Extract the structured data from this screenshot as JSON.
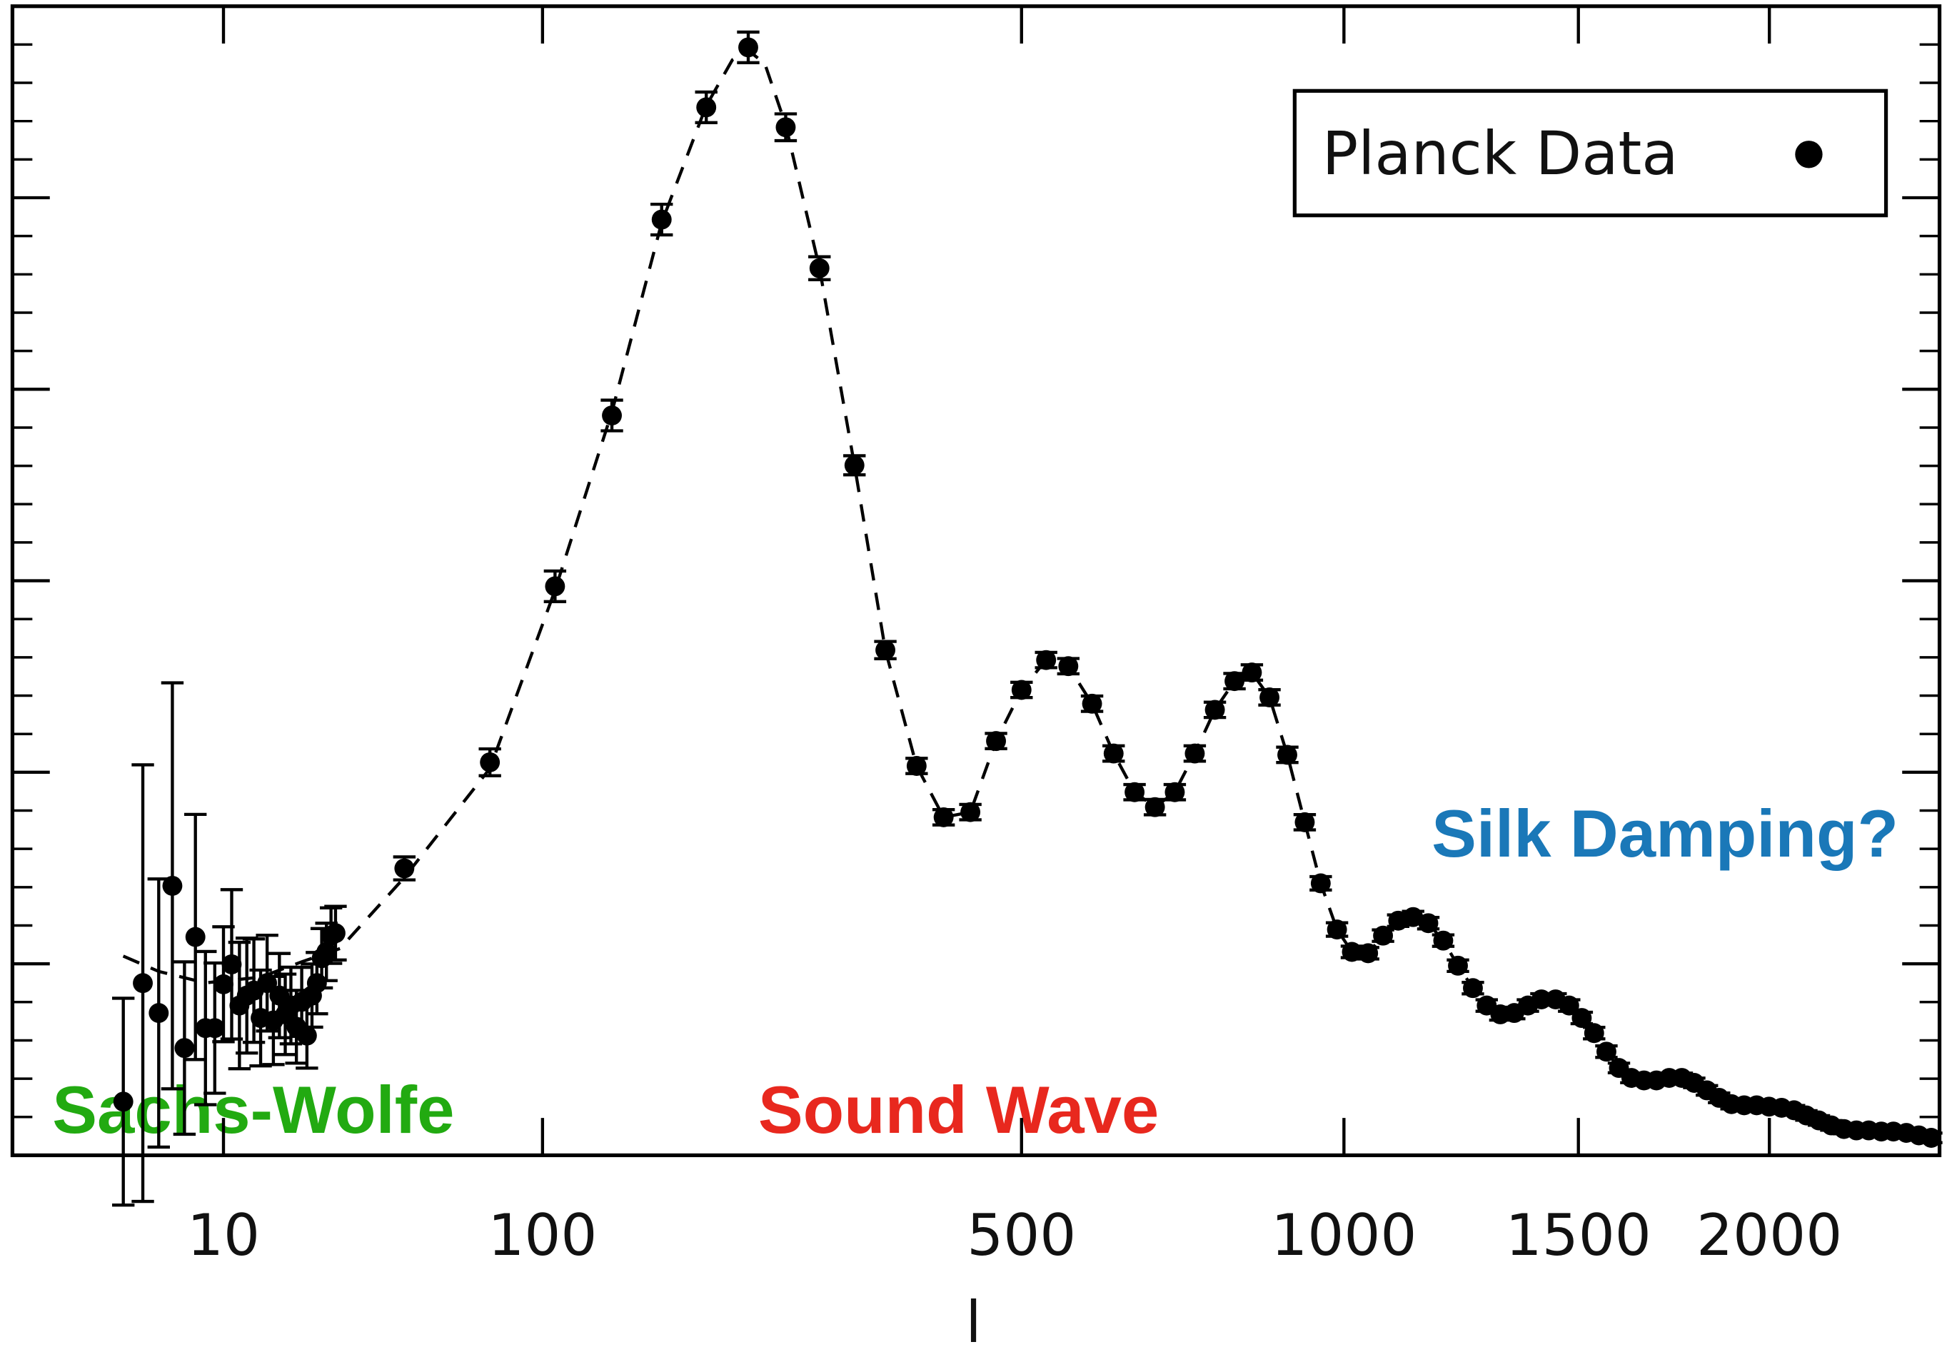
{
  "chart_data": {
    "type": "scatter",
    "xlabel": "l",
    "xscale": "power",
    "xpower": 0.4,
    "xlim": [
      0,
      2520
    ],
    "xticks": [
      10,
      100,
      500,
      1000,
      1500,
      2000
    ],
    "ylim": [
      0,
      6000
    ],
    "yticks": [
      0,
      1000,
      2000,
      3000,
      4000,
      5000,
      6000
    ],
    "yminorticks": [
      200,
      400,
      600,
      800,
      1200,
      1400,
      1600,
      1800,
      2200,
      2400,
      2600,
      2800,
      3200,
      3400,
      3600,
      3800,
      4200,
      4400,
      4600,
      4800,
      5200,
      5400,
      5600,
      5800
    ],
    "legend": "upper right",
    "series": [
      {
        "name": "Planck Data",
        "color": "#000000",
        "x": [
          2,
          3,
          4,
          5,
          6,
          7,
          8,
          9,
          10,
          11,
          12,
          13,
          14,
          15,
          16,
          17,
          18,
          19,
          20,
          21,
          22,
          23,
          24,
          25,
          26,
          27,
          28,
          29,
          47,
          77,
          106,
          136,
          166,
          196,
          227,
          257,
          286,
          318,
          348,
          380,
          409,
          439,
          469,
          500,
          531,
          560,
          592,
          622,
          652,
          682,
          712,
          743,
          775,
          807,
          836,
          866,
          897,
          928,
          957,
          987,
          1015,
          1046,
          1075,
          1105,
          1135,
          1166,
          1197,
          1228,
          1260,
          1290,
          1320,
          1351,
          1382,
          1413,
          1446,
          1478,
          1508,
          1538,
          1568,
          1599,
          1630,
          1662,
          1694,
          1727,
          1760,
          1793,
          1827,
          1860,
          1894,
          1929,
          1964,
          1999,
          2035,
          2071,
          2107,
          2144,
          2181,
          2219,
          2257,
          2295,
          2334,
          2372,
          2413,
          2453,
          2493
        ],
        "values": [
          280,
          899,
          743,
          1407,
          560,
          1140,
          664,
          664,
          893,
          997,
          782,
          834,
          860,
          717,
          899,
          704,
          834,
          736,
          782,
          671,
          801,
          625,
          834,
          899,
          1029,
          1062,
          1147,
          1160,
          1498,
          2052,
          2971,
          3863,
          4886,
          5472,
          5785,
          5368,
          4632,
          3603,
          2638,
          2033,
          1765,
          1792,
          2163,
          2430,
          2586,
          2554,
          2358,
          2098,
          1896,
          1818,
          1896,
          2098,
          2326,
          2476,
          2521,
          2391,
          2091,
          1739,
          1420,
          1179,
          1062,
          1055,
          1147,
          1225,
          1244,
          1212,
          1121,
          990,
          873,
          782,
          736,
          743,
          782,
          814,
          814,
          782,
          717,
          638,
          541,
          456,
          404,
          391,
          391,
          404,
          404,
          378,
          339,
          300,
          267,
          261,
          261,
          254,
          248,
          235,
          208,
          182,
          156,
          137,
          130,
          130,
          124,
          124,
          117,
          104,
          91
        ],
        "errors": [
          540,
          1140,
          700,
          1060,
          450,
          640,
          400,
          340,
          300,
          390,
          330,
          300,
          270,
          250,
          250,
          230,
          220,
          210,
          200,
          190,
          180,
          170,
          165,
          160,
          155,
          150,
          145,
          140,
          60,
          70,
          80,
          80,
          80,
          80,
          80,
          70,
          60,
          50,
          45,
          40,
          40,
          40,
          40,
          40,
          40,
          40,
          40,
          40,
          40,
          40,
          40,
          40,
          40,
          40,
          40,
          40,
          40,
          40,
          35,
          35,
          30,
          30,
          30,
          30,
          30,
          30,
          30,
          30,
          30,
          30,
          30,
          30,
          30,
          30,
          30,
          30,
          30,
          30,
          30,
          25,
          25,
          25,
          25,
          25,
          25,
          25,
          25,
          25,
          25,
          25,
          25,
          25,
          25,
          25,
          25,
          25,
          25,
          25,
          25,
          25,
          25,
          25,
          25,
          25,
          25
        ]
      }
    ],
    "model": {
      "color": "#000000",
      "dash": true,
      "x": [
        2,
        4,
        8,
        15,
        22,
        30,
        47,
        77,
        106,
        136,
        166,
        196,
        215,
        227,
        240,
        257,
        286,
        318,
        348,
        380,
        409,
        439,
        469,
        500,
        531,
        560,
        592,
        622,
        652,
        682,
        712,
        743,
        775,
        807,
        836,
        866,
        897,
        928,
        957,
        987,
        1015,
        1046,
        1075,
        1105,
        1135,
        1166,
        1197,
        1228,
        1260,
        1290,
        1320,
        1351,
        1382,
        1413,
        1446,
        1478,
        1508,
        1538,
        1568,
        1599,
        1630,
        1662,
        1694,
        1727,
        1760,
        1793,
        1827,
        1860,
        1894,
        1929,
        1964,
        1999,
        2035,
        2071,
        2107,
        2144,
        2181,
        2219,
        2257,
        2295,
        2334,
        2372,
        2413,
        2453,
        2493
      ],
      "values": [
        1040,
        960,
        900,
        930,
        1010,
        1080,
        1450,
        2020,
        2950,
        3880,
        4870,
        5480,
        5720,
        5770,
        5700,
        5380,
        4632,
        3603,
        2638,
        2033,
        1765,
        1792,
        2163,
        2430,
        2586,
        2554,
        2358,
        2098,
        1896,
        1818,
        1896,
        2098,
        2326,
        2476,
        2521,
        2391,
        2091,
        1739,
        1420,
        1179,
        1062,
        1055,
        1147,
        1225,
        1244,
        1212,
        1121,
        990,
        873,
        782,
        736,
        743,
        782,
        814,
        814,
        782,
        717,
        638,
        541,
        456,
        404,
        391,
        391,
        404,
        404,
        378,
        339,
        300,
        267,
        261,
        261,
        254,
        248,
        235,
        208,
        182,
        156,
        137,
        130,
        130,
        124,
        124,
        117,
        104,
        91
      ]
    },
    "annotations": [
      {
        "text": "Sachs-Wolfe",
        "color": "#22aa11"
      },
      {
        "text": "Sound Wave",
        "color": "#e8281e"
      },
      {
        "text": "Silk Damping?",
        "color": "#1a78b8"
      }
    ]
  }
}
